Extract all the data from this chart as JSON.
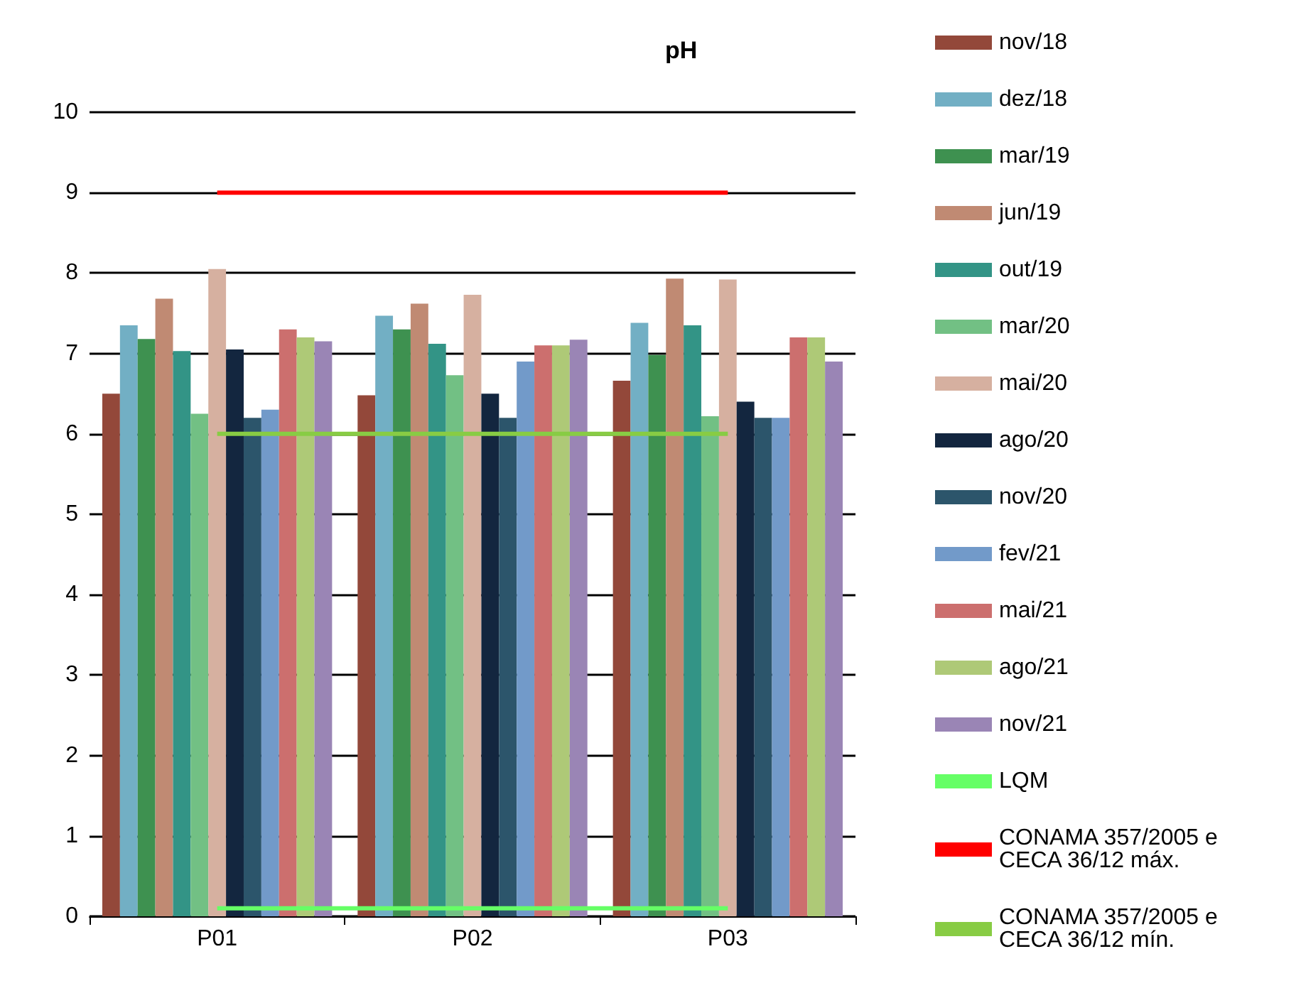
{
  "chart_data": {
    "type": "bar",
    "title": "pH",
    "categories": [
      "P01",
      "P02",
      "P03"
    ],
    "series": [
      {
        "name": "nov/18",
        "color": "#93483a",
        "values": [
          6.5,
          6.48,
          6.66
        ]
      },
      {
        "name": "dez/18",
        "color": "#72afc4",
        "values": [
          7.35,
          7.47,
          7.38
        ]
      },
      {
        "name": "mar/19",
        "color": "#3e9150",
        "values": [
          7.18,
          7.3,
          6.98
        ]
      },
      {
        "name": "jun/19",
        "color": "#c08a73",
        "values": [
          7.68,
          7.62,
          7.93
        ]
      },
      {
        "name": "out/19",
        "color": "#339486",
        "values": [
          7.03,
          7.12,
          7.35
        ]
      },
      {
        "name": "mar/20",
        "color": "#72c084",
        "values": [
          6.25,
          6.73,
          6.22
        ]
      },
      {
        "name": "mai/20",
        "color": "#d6b0a0",
        "values": [
          8.05,
          7.73,
          7.92
        ]
      },
      {
        "name": "ago/20",
        "color": "#13263f",
        "values": [
          7.05,
          6.5,
          6.4
        ]
      },
      {
        "name": "nov/20",
        "color": "#2c556b",
        "values": [
          6.2,
          6.2,
          6.2
        ]
      },
      {
        "name": "fev/21",
        "color": "#729ac9",
        "values": [
          6.3,
          6.9,
          6.2
        ]
      },
      {
        "name": "mai/21",
        "color": "#cc6f6e",
        "values": [
          7.3,
          7.1,
          7.2
        ]
      },
      {
        "name": "ago/21",
        "color": "#aec977",
        "values": [
          7.2,
          7.1,
          7.2
        ]
      },
      {
        "name": "nov/21",
        "color": "#9a85b5",
        "values": [
          7.15,
          7.17,
          6.9
        ]
      },
      {
        "name": "LQM",
        "type": "line",
        "color": "#66ff66",
        "values": [
          0.1,
          0.1,
          0.1
        ]
      },
      {
        "name": "CONAMA 357/2005 e CECA 36/12 máx.",
        "type": "line",
        "color": "#ff0000",
        "values": [
          9,
          9,
          9
        ]
      },
      {
        "name": "CONAMA 357/2005 e CECA 36/12 mín.",
        "type": "line",
        "color": "#88cc44",
        "values": [
          6,
          6,
          6
        ]
      }
    ],
    "ylim": [
      0,
      10
    ],
    "yticks": [
      0,
      1,
      2,
      3,
      4,
      5,
      6,
      7,
      8,
      9,
      10
    ],
    "grid": "y",
    "legend": "right",
    "marker": "none"
  }
}
